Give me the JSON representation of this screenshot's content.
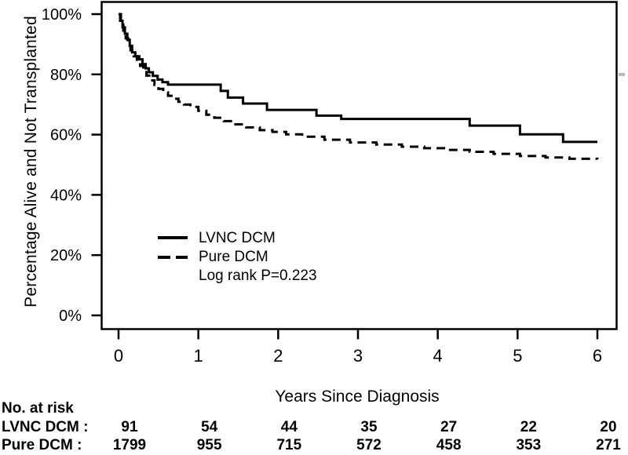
{
  "figure": {
    "background": "#ffffff",
    "ink": "#000000"
  },
  "chart_data": {
    "type": "line",
    "subtype": "kaplan-meier-step-curves",
    "title": "",
    "xlabel": "Years Since Diagnosis",
    "ylabel": "Percentage Alive and Not Transplanted",
    "xlim": [
      0,
      6
    ],
    "ylim": [
      0,
      100
    ],
    "x_ticks": [
      0,
      1,
      2,
      3,
      4,
      5,
      6
    ],
    "y_ticks": [
      0,
      20,
      40,
      60,
      80,
      100
    ],
    "y_tick_labels": [
      "0%",
      "20%",
      "40%",
      "60%",
      "80%",
      "100%"
    ],
    "grid": false,
    "legend": {
      "position": "inside-lower-left",
      "note": "Log rank P=0.223"
    },
    "series": [
      {
        "name": "LVNC DCM",
        "line_style": "solid",
        "color": "#000000",
        "step": true,
        "points": [
          [
            0,
            100
          ],
          [
            0.02,
            97.8
          ],
          [
            0.05,
            95.6
          ],
          [
            0.08,
            93.5
          ],
          [
            0.11,
            91.5
          ],
          [
            0.14,
            89.5
          ],
          [
            0.17,
            87.3
          ],
          [
            0.21,
            86.0
          ],
          [
            0.26,
            85.0
          ],
          [
            0.3,
            83.4
          ],
          [
            0.34,
            82.0
          ],
          [
            0.38,
            80.7
          ],
          [
            0.43,
            79.5
          ],
          [
            0.49,
            78.3
          ],
          [
            0.55,
            77.4
          ],
          [
            0.62,
            76.6
          ],
          [
            1.28,
            74.5
          ],
          [
            1.37,
            72.3
          ],
          [
            1.56,
            70.3
          ],
          [
            1.86,
            68.2
          ],
          [
            2.48,
            66.3
          ],
          [
            2.79,
            65.2
          ],
          [
            4.4,
            63.0
          ],
          [
            5.03,
            60.1
          ],
          [
            5.57,
            57.6
          ],
          [
            6.0,
            57.6
          ]
        ]
      },
      {
        "name": "Pure DCM",
        "line_style": "dashed",
        "color": "#000000",
        "step": true,
        "points": [
          [
            0,
            100
          ],
          [
            0.03,
            97.0
          ],
          [
            0.06,
            94.5
          ],
          [
            0.09,
            92.0
          ],
          [
            0.12,
            90.0
          ],
          [
            0.15,
            88.0
          ],
          [
            0.19,
            86.0
          ],
          [
            0.23,
            84.3
          ],
          [
            0.27,
            82.8
          ],
          [
            0.31,
            81.2
          ],
          [
            0.35,
            79.6
          ],
          [
            0.4,
            78.0
          ],
          [
            0.45,
            76.5
          ],
          [
            0.5,
            75.2
          ],
          [
            0.56,
            74.0
          ],
          [
            0.62,
            72.9
          ],
          [
            0.68,
            71.9
          ],
          [
            0.75,
            70.9
          ],
          [
            0.82,
            70.0
          ],
          [
            0.9,
            69.2
          ],
          [
            1.0,
            67.9
          ],
          [
            1.1,
            66.6
          ],
          [
            1.2,
            65.6
          ],
          [
            1.32,
            64.5
          ],
          [
            1.45,
            63.4
          ],
          [
            1.6,
            62.4
          ],
          [
            1.77,
            61.5
          ],
          [
            1.93,
            60.9
          ],
          [
            2.1,
            60.1
          ],
          [
            2.3,
            59.3
          ],
          [
            2.58,
            58.3
          ],
          [
            2.9,
            57.4
          ],
          [
            3.23,
            56.7
          ],
          [
            3.55,
            56.0
          ],
          [
            3.83,
            55.5
          ],
          [
            4.1,
            54.9
          ],
          [
            4.4,
            54.3
          ],
          [
            4.7,
            53.6
          ],
          [
            5.03,
            52.9
          ],
          [
            5.35,
            52.4
          ],
          [
            5.65,
            52.0
          ],
          [
            6.0,
            51.8
          ]
        ]
      }
    ]
  },
  "risk_table": {
    "title": "No. at risk",
    "rows": [
      {
        "label": "LVNC DCM :",
        "values": [
          "91",
          "54",
          "44",
          "35",
          "27",
          "22",
          "20"
        ]
      },
      {
        "label": "Pure DCM :",
        "values": [
          "1799",
          "955",
          "715",
          "572",
          "458",
          "353",
          "271"
        ]
      }
    ]
  }
}
